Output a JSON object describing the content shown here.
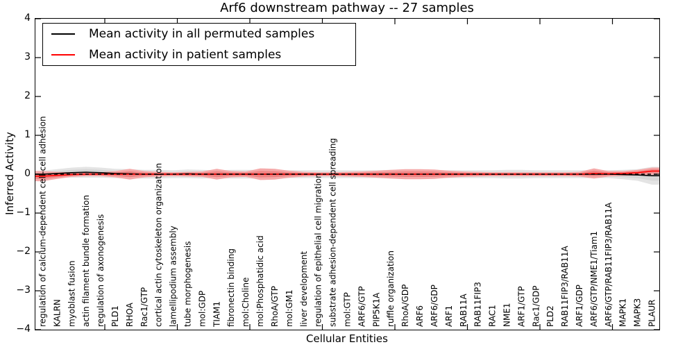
{
  "figure": {
    "title": "Arf6 downstream pathway -- 27 samples",
    "xlabel": "Cellular Entities",
    "ylabel": "Inferred Activity"
  },
  "legend": {
    "position": "upper left",
    "items": [
      {
        "label": "Mean activity in all permuted samples",
        "color": "#000000"
      },
      {
        "label": "Mean activity in patient samples",
        "color": "#ff0000"
      }
    ]
  },
  "axes": {
    "y_tick_labels": [
      "4",
      "3",
      "2",
      "1",
      "0",
      "−1",
      "−2",
      "−3",
      "−4"
    ],
    "y_tick_values": [
      4,
      3,
      2,
      1,
      0,
      -1,
      -2,
      -3,
      -4
    ]
  },
  "chart_data": {
    "type": "line",
    "title": "Arf6 downstream pathway -- 27 samples",
    "xlabel": "Cellular Entities",
    "ylabel": "Inferred Activity",
    "ylim": [
      -4,
      4
    ],
    "grid": false,
    "legend_position": "upper left",
    "zero_line": {
      "value": 0,
      "style": "dashed",
      "color": "#000000"
    },
    "categories": [
      "regulation of calcium-dependent cell-cell adhesion",
      "KALRN",
      "myoblast fusion",
      "actin filament bundle formation",
      "regulation of axonogenesis",
      "PLD1",
      "RHOA",
      "Rac1/GTP",
      "cortical actin cytoskeleton organization",
      "lamellipodium assembly",
      "tube morphogenesis",
      "mol:GDP",
      "TIAM1",
      "fibronectin binding",
      "mol:Choline",
      "mol:Phosphatidic acid",
      "RhoA/GTP",
      "mol:GM1",
      "liver development",
      "regulation of epithelial cell migration",
      "substrate adhesion-dependent cell spreading",
      "mol:GTP",
      "ARF6/GTP",
      "PIP5K1A",
      "ruffle organization",
      "RhoA/GDP",
      "ARF6",
      "ARF6/GDP",
      "ARF1",
      "RAB11A",
      "RAB11FIP3",
      "RAC1",
      "NME1",
      "ARF1/GTP",
      "Rac1/GDP",
      "PLD2",
      "RAB11FIP3/RAB11A",
      "ARF1/GDP",
      "ARF6/GTP/NME1/Tiam1",
      "ARF6/GTP/RAB11FIP3/RAB11A",
      "MAPK1",
      "MAPK3",
      "PLAUR"
    ],
    "series": [
      {
        "name": "Mean activity in all permuted samples",
        "color": "#000000",
        "line_style": "solid",
        "band_color_outer": "#e4e4e4",
        "band_color_inner": "#d6d6d6",
        "values": [
          0.0,
          0.02,
          0.04,
          0.05,
          0.04,
          0.02,
          0.01,
          0.0,
          0.0,
          0.0,
          0.01,
          0.0,
          0.0,
          0.0,
          0.0,
          0.0,
          0.0,
          0.0,
          0.0,
          0.0,
          0.0,
          0.0,
          0.0,
          0.0,
          0.0,
          0.0,
          0.0,
          0.0,
          0.0,
          0.0,
          0.0,
          0.0,
          0.0,
          0.0,
          0.0,
          0.0,
          0.0,
          0.0,
          0.0,
          0.0,
          -0.01,
          -0.02,
          -0.04
        ],
        "band_halfwidth": [
          0.09,
          0.11,
          0.13,
          0.14,
          0.13,
          0.12,
          0.12,
          0.11,
          0.11,
          0.1,
          0.11,
          0.11,
          0.1,
          0.11,
          0.11,
          0.11,
          0.11,
          0.1,
          0.1,
          0.1,
          0.1,
          0.1,
          0.1,
          0.1,
          0.11,
          0.11,
          0.11,
          0.1,
          0.1,
          0.1,
          0.1,
          0.1,
          0.11,
          0.11,
          0.1,
          0.1,
          0.1,
          0.1,
          0.1,
          0.1,
          0.12,
          0.15,
          0.23
        ]
      },
      {
        "name": "Mean activity in patient samples",
        "color": "#ff0000",
        "line_style": "solid",
        "band_color_outer": "#f5a9a9",
        "band_color_inner": "#ee8484",
        "values": [
          -0.05,
          -0.03,
          -0.01,
          0.0,
          0.0,
          0.0,
          0.0,
          0.0,
          0.0,
          0.0,
          0.0,
          0.0,
          0.0,
          0.0,
          0.0,
          0.0,
          0.0,
          0.0,
          0.0,
          0.0,
          0.0,
          0.0,
          0.0,
          0.0,
          0.0,
          0.0,
          0.0,
          0.0,
          0.0,
          0.0,
          0.0,
          0.0,
          0.0,
          0.0,
          0.0,
          0.0,
          0.0,
          0.0,
          0.02,
          0.01,
          0.02,
          0.04,
          0.08
        ],
        "band_halfwidth": [
          0.13,
          0.09,
          0.06,
          0.05,
          0.05,
          0.08,
          0.14,
          0.08,
          0.06,
          0.05,
          0.06,
          0.07,
          0.14,
          0.08,
          0.07,
          0.15,
          0.14,
          0.09,
          0.06,
          0.05,
          0.05,
          0.06,
          0.07,
          0.09,
          0.11,
          0.13,
          0.13,
          0.12,
          0.09,
          0.07,
          0.06,
          0.05,
          0.05,
          0.05,
          0.05,
          0.05,
          0.05,
          0.06,
          0.13,
          0.07,
          0.06,
          0.07,
          0.09
        ]
      }
    ]
  }
}
